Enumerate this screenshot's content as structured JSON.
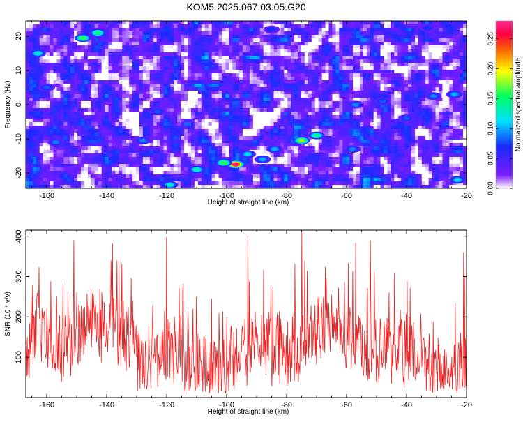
{
  "title": "KOM5.2025.067.03.05.G20",
  "chart_data": [
    {
      "type": "heatmap",
      "xlabel": "Height of straight line (km)",
      "ylabel": "Frequency (Hz)",
      "xlim": [
        -167,
        -20
      ],
      "ylim": [
        -24.5,
        24.5
      ],
      "xticks": [
        -160,
        -140,
        -120,
        -100,
        -80,
        -60,
        -40,
        -20
      ],
      "yticks": [
        -20,
        -10,
        0,
        10,
        20
      ],
      "colorbar": {
        "label": "Normalized spectral amplitude",
        "range": [
          0,
          0.28
        ],
        "ticks": [
          0.0,
          0.05,
          0.1,
          0.15,
          0.2,
          0.25
        ],
        "tick_labels": [
          "0.00",
          "0.05",
          "0.10",
          "0.15",
          "0.20",
          "0.25"
        ],
        "colormap": [
          "#ffffff",
          "#7a1cff",
          "#1a2aff",
          "#00e0ff",
          "#00ff60",
          "#ffff00",
          "#ff6a00",
          "#ff0040",
          "#ff2a90"
        ]
      },
      "hotspots": [
        {
          "x": -97,
          "y": -17.5,
          "value": 0.27
        },
        {
          "x": -101,
          "y": -17.0,
          "value": 0.16
        },
        {
          "x": -110,
          "y": -19.0,
          "value": 0.13
        },
        {
          "x": -75,
          "y": -10.5,
          "value": 0.18
        },
        {
          "x": -70,
          "y": -9.0,
          "value": 0.14
        },
        {
          "x": -148,
          "y": 19.5,
          "value": 0.16
        },
        {
          "x": -143,
          "y": 21.0,
          "value": 0.15
        },
        {
          "x": -163,
          "y": 15.0,
          "value": 0.12
        },
        {
          "x": -119,
          "y": -23.5,
          "value": 0.12
        },
        {
          "x": -93,
          "y": -14.5,
          "value": 0.11
        },
        {
          "x": -88,
          "y": -16.0,
          "value": 0.1
        },
        {
          "x": -23,
          "y": -22.0,
          "value": 0.11
        },
        {
          "x": -24,
          "y": 3.0,
          "value": 0.1
        },
        {
          "x": -31,
          "y": 2.5,
          "value": 0.09
        },
        {
          "x": -57,
          "y": 0.0,
          "value": 0.09
        },
        {
          "x": -48,
          "y": 1.0,
          "value": 0.08
        },
        {
          "x": -84,
          "y": -13.0,
          "value": 0.1
        },
        {
          "x": -128,
          "y": -10.5,
          "value": 0.09
        },
        {
          "x": -160,
          "y": 5.0,
          "value": 0.08
        },
        {
          "x": -157,
          "y": -11.0,
          "value": 0.09
        },
        {
          "x": -58,
          "y": -13.0,
          "value": 0.09
        },
        {
          "x": -40,
          "y": -4.0,
          "value": 0.08
        },
        {
          "x": -123,
          "y": -2.0,
          "value": 0.08
        },
        {
          "x": -33,
          "y": 22.5,
          "value": 0.07
        },
        {
          "x": -85,
          "y": 22.0,
          "value": 0.07
        }
      ]
    },
    {
      "type": "line",
      "xlabel": "Height of straight line (km)",
      "ylabel": "SNR (10 * v/v)",
      "xlim": [
        -167,
        -20
      ],
      "ylim": [
        0,
        415
      ],
      "xticks": [
        -160,
        -140,
        -120,
        -100,
        -80,
        -60,
        -40,
        -20
      ],
      "yticks": [
        100,
        200,
        300,
        400
      ],
      "color": "#ee2020",
      "series": [
        {
          "name": "",
          "generator": {
            "points": 900,
            "typical_min": 20,
            "typical_max": 300,
            "peaks": [
              {
                "x": -75,
                "y": 412
              },
              {
                "x": -120,
                "y": 397
              },
              {
                "x": -93,
                "y": 402
              },
              {
                "x": -151,
                "y": 390
              },
              {
                "x": -57,
                "y": 383
              },
              {
                "x": -52,
                "y": 390
              },
              {
                "x": -138,
                "y": 382
              },
              {
                "x": -21,
                "y": 360
              }
            ]
          }
        }
      ]
    }
  ]
}
